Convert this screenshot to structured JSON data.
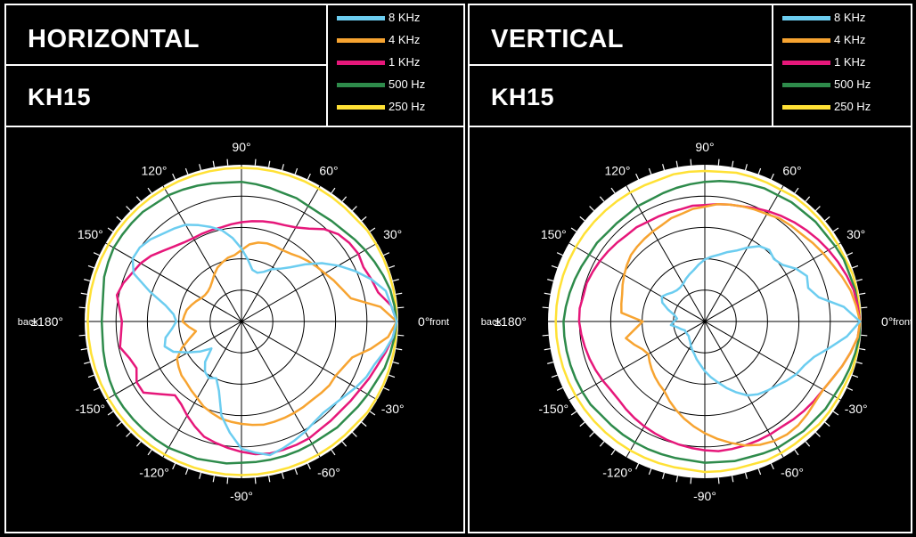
{
  "chart_data": [
    {
      "type": "polar",
      "title": "HORIZONTAL",
      "subtitle": "KH15",
      "angle_labels": [
        "0°",
        "30°",
        "60°",
        "90°",
        "120°",
        "150°",
        "±180°",
        "-150°",
        "-120°",
        "-90°",
        "-60°",
        "-30°"
      ],
      "side_labels": {
        "left": "back",
        "right": "front"
      },
      "series": [
        {
          "name": "8 KHz",
          "color": "#6ccdf0",
          "radii": [
            1.0,
            0.97,
            0.95,
            0.88,
            0.8,
            0.72,
            0.64,
            0.55,
            0.47,
            0.42,
            0.39,
            0.35,
            0.33,
            0.34,
            0.4,
            0.47,
            0.54,
            0.6,
            0.64,
            0.68,
            0.72,
            0.74,
            0.76,
            0.79,
            0.81,
            0.81,
            0.76,
            0.62,
            0.5,
            0.44,
            0.42,
            0.45,
            0.5,
            0.52,
            0.48,
            0.4,
            0.33,
            0.26,
            0.35,
            0.4,
            0.42,
            0.4,
            0.47,
            0.62,
            0.72,
            0.82,
            0.85,
            0.88,
            0.86,
            0.84,
            0.82,
            0.8,
            0.79,
            0.8,
            0.82,
            0.85,
            0.88,
            0.9,
            0.94,
            0.98
          ]
        },
        {
          "name": "4 KHz",
          "color": "#f7a431",
          "radii": [
            1.0,
            0.9,
            0.72,
            0.68,
            0.65,
            0.62,
            0.6,
            0.58,
            0.56,
            0.54,
            0.53,
            0.53,
            0.53,
            0.52,
            0.5,
            0.46,
            0.43,
            0.42,
            0.4,
            0.38,
            0.35,
            0.32,
            0.3,
            0.29,
            0.29,
            0.3,
            0.32,
            0.34,
            0.36,
            0.37,
            0.38,
            0.34,
            0.3,
            0.35,
            0.42,
            0.48,
            0.5,
            0.52,
            0.53,
            0.55,
            0.57,
            0.6,
            0.62,
            0.64,
            0.65,
            0.66,
            0.67,
            0.68,
            0.68,
            0.68,
            0.68,
            0.68,
            0.68,
            0.69,
            0.7,
            0.7,
            0.72,
            0.75,
            0.85,
            0.95
          ]
        },
        {
          "name": "1 KHz",
          "color": "#e6177a",
          "radii": [
            1.0,
            0.97,
            0.9,
            0.88,
            0.86,
            0.87,
            0.86,
            0.84,
            0.8,
            0.74,
            0.7,
            0.68,
            0.67,
            0.66,
            0.65,
            0.64,
            0.63,
            0.62,
            0.62,
            0.62,
            0.62,
            0.63,
            0.65,
            0.68,
            0.72,
            0.75,
            0.77,
            0.8,
            0.82,
            0.79,
            0.77,
            0.78,
            0.8,
            0.76,
            0.74,
            0.78,
            0.78,
            0.7,
            0.64,
            0.66,
            0.7,
            0.74,
            0.78,
            0.8,
            0.82,
            0.84,
            0.86,
            0.87,
            0.87,
            0.87,
            0.87,
            0.86,
            0.86,
            0.86,
            0.87,
            0.88,
            0.9,
            0.92,
            0.95,
            0.98
          ]
        },
        {
          "name": "500 Hz",
          "color": "#2e8b4b",
          "radii": [
            1.0,
            0.99,
            0.98,
            0.96,
            0.94,
            0.92,
            0.9,
            0.88,
            0.87,
            0.86,
            0.86,
            0.87,
            0.87,
            0.88,
            0.89,
            0.9,
            0.9,
            0.91,
            0.92,
            0.93,
            0.94,
            0.94,
            0.95,
            0.95,
            0.95,
            0.95,
            0.94,
            0.93,
            0.91,
            0.9,
            0.9,
            0.9,
            0.91,
            0.92,
            0.93,
            0.94,
            0.94,
            0.94,
            0.94,
            0.94,
            0.94,
            0.93,
            0.93,
            0.92,
            0.92,
            0.91,
            0.91,
            0.91,
            0.91,
            0.91,
            0.91,
            0.91,
            0.92,
            0.92,
            0.93,
            0.94,
            0.95,
            0.97,
            0.98,
            0.99
          ]
        },
        {
          "name": "250 Hz",
          "color": "#ffe135",
          "radii": [
            1.0,
            1.0,
            1.0,
            1.0,
            1.0,
            1.0,
            1.0,
            0.99,
            0.99,
            0.99,
            0.99,
            0.99,
            0.99,
            0.99,
            0.99,
            0.99,
            0.99,
            0.99,
            0.99,
            0.99,
            0.99,
            0.99,
            0.99,
            0.99,
            0.99,
            0.99,
            0.99,
            0.99,
            0.99,
            0.99,
            0.99,
            0.99,
            0.99,
            0.99,
            0.99,
            0.99,
            0.99,
            0.99,
            0.99,
            0.99,
            0.99,
            0.99,
            0.99,
            0.99,
            0.99,
            0.99,
            0.99,
            0.99,
            0.99,
            0.99,
            0.99,
            0.99,
            0.99,
            0.99,
            1.0,
            1.0,
            1.0,
            1.0,
            1.0,
            1.0
          ]
        }
      ]
    },
    {
      "type": "polar",
      "title": "VERTICAL",
      "subtitle": "KH15",
      "angle_labels": [
        "0°",
        "30°",
        "60°",
        "90°",
        "120°",
        "150°",
        "±180°",
        "-150°",
        "-120°",
        "-90°",
        "-60°",
        "-30°"
      ],
      "side_labels": {
        "left": "back",
        "right": "front"
      },
      "series": [
        {
          "name": "8 KHz",
          "color": "#6ccdf0",
          "radii": [
            1.0,
            0.9,
            0.75,
            0.7,
            0.72,
            0.68,
            0.62,
            0.6,
            0.62,
            0.6,
            0.55,
            0.5,
            0.47,
            0.44,
            0.42,
            0.4,
            0.37,
            0.34,
            0.32,
            0.3,
            0.28,
            0.27,
            0.27,
            0.28,
            0.3,
            0.32,
            0.3,
            0.25,
            0.2,
            0.18,
            0.2,
            0.22,
            0.18,
            0.16,
            0.14,
            0.14,
            0.14,
            0.14,
            0.15,
            0.16,
            0.18,
            0.2,
            0.22,
            0.25,
            0.28,
            0.32,
            0.36,
            0.4,
            0.45,
            0.5,
            0.55,
            0.58,
            0.6,
            0.62,
            0.65,
            0.68,
            0.7,
            0.74,
            0.82,
            0.92
          ]
        },
        {
          "name": "4 KHz",
          "color": "#f7a431",
          "radii": [
            1.0,
            0.98,
            0.96,
            0.93,
            0.9,
            0.88,
            0.86,
            0.84,
            0.83,
            0.82,
            0.8,
            0.79,
            0.78,
            0.77,
            0.76,
            0.74,
            0.73,
            0.71,
            0.7,
            0.68,
            0.67,
            0.66,
            0.65,
            0.64,
            0.62,
            0.6,
            0.58,
            0.56,
            0.55,
            0.54,
            0.4,
            0.45,
            0.52,
            0.48,
            0.44,
            0.42,
            0.44,
            0.46,
            0.48,
            0.5,
            0.52,
            0.56,
            0.6,
            0.64,
            0.68,
            0.72,
            0.76,
            0.8,
            0.84,
            0.87,
            0.89,
            0.9,
            0.9,
            0.89,
            0.88,
            0.88,
            0.9,
            0.93,
            0.96,
            0.99
          ]
        },
        {
          "name": "1 KHz",
          "color": "#e6177a",
          "radii": [
            1.0,
            0.99,
            0.98,
            0.96,
            0.94,
            0.92,
            0.9,
            0.88,
            0.86,
            0.84,
            0.82,
            0.8,
            0.78,
            0.77,
            0.76,
            0.75,
            0.75,
            0.74,
            0.74,
            0.74,
            0.74,
            0.75,
            0.75,
            0.76,
            0.77,
            0.78,
            0.79,
            0.8,
            0.8,
            0.81,
            0.81,
            0.8,
            0.79,
            0.78,
            0.77,
            0.76,
            0.75,
            0.75,
            0.76,
            0.77,
            0.78,
            0.79,
            0.8,
            0.81,
            0.82,
            0.83,
            0.84,
            0.84,
            0.84,
            0.84,
            0.84,
            0.84,
            0.85,
            0.86,
            0.87,
            0.88,
            0.9,
            0.93,
            0.96,
            0.99
          ]
        },
        {
          "name": "500 Hz",
          "color": "#2e8b4b",
          "radii": [
            1.0,
            0.99,
            0.99,
            0.98,
            0.98,
            0.97,
            0.96,
            0.96,
            0.95,
            0.95,
            0.94,
            0.94,
            0.93,
            0.92,
            0.91,
            0.9,
            0.89,
            0.88,
            0.87,
            0.86,
            0.86,
            0.85,
            0.85,
            0.85,
            0.86,
            0.86,
            0.87,
            0.88,
            0.89,
            0.9,
            0.91,
            0.91,
            0.91,
            0.91,
            0.91,
            0.91,
            0.91,
            0.9,
            0.9,
            0.9,
            0.9,
            0.9,
            0.9,
            0.9,
            0.9,
            0.91,
            0.91,
            0.92,
            0.92,
            0.93,
            0.94,
            0.94,
            0.95,
            0.95,
            0.96,
            0.96,
            0.97,
            0.98,
            0.99,
            1.0
          ]
        },
        {
          "name": "250 Hz",
          "color": "#ffe135",
          "radii": [
            1.0,
            1.0,
            1.0,
            1.0,
            0.99,
            0.99,
            0.99,
            0.99,
            0.99,
            0.99,
            0.98,
            0.98,
            0.98,
            0.98,
            0.97,
            0.97,
            0.97,
            0.97,
            0.96,
            0.96,
            0.96,
            0.96,
            0.96,
            0.96,
            0.96,
            0.96,
            0.96,
            0.96,
            0.96,
            0.96,
            0.96,
            0.96,
            0.96,
            0.96,
            0.96,
            0.96,
            0.96,
            0.96,
            0.96,
            0.96,
            0.96,
            0.96,
            0.96,
            0.96,
            0.96,
            0.97,
            0.97,
            0.97,
            0.97,
            0.98,
            0.98,
            0.98,
            0.98,
            0.99,
            0.99,
            0.99,
            0.99,
            1.0,
            1.0,
            1.0
          ]
        }
      ]
    }
  ]
}
